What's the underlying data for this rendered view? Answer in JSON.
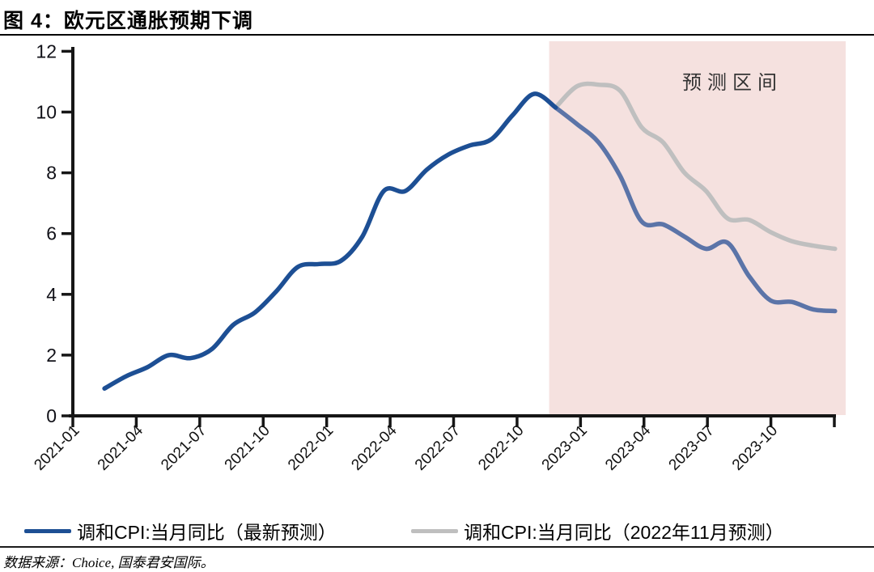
{
  "title": "图 4：欧元区通胀预期下调",
  "source_note": "数据来源：Choice, 国泰君安国际。",
  "colors": {
    "actual_line": "#1d4f94",
    "forecast_line_blue": "#5b74a8",
    "forecast_line_gray": "#bfbfbf",
    "forecast_region_fill": "#f5e1df",
    "axis": "#161616",
    "annotation_text": "#333333"
  },
  "chart_data": {
    "type": "line",
    "title": "欧元区通胀预期下调",
    "xlabel": "",
    "ylabel": "",
    "ylim": [
      0,
      12
    ],
    "y_ticks": [
      0,
      2,
      4,
      6,
      8,
      10,
      12
    ],
    "x_range_start": "2021-01",
    "x_range_end": "2023-12",
    "x_tick_labels": [
      "2021-01",
      "2021-04",
      "2021-07",
      "2021-10",
      "2022-01",
      "2022-04",
      "2022-07",
      "2022-10",
      "2023-01",
      "2023-04",
      "2023-07",
      "2023-10"
    ],
    "annotation": "预测区间",
    "forecast_start": "2022-11",
    "forecast_start_index": 22,
    "grid": false,
    "legend_position": "bottom",
    "series": [
      {
        "name": "调和CPI:当月同比（最新预测）",
        "start": "2021-02",
        "start_index": 1,
        "values": [
          0.9,
          1.3,
          1.6,
          2.0,
          1.9,
          2.2,
          3.0,
          3.4,
          4.1,
          4.9,
          5.0,
          5.1,
          5.9,
          7.4,
          7.4,
          8.1,
          8.6,
          8.9,
          9.1,
          9.9,
          10.6,
          10.15,
          9.6,
          9.0,
          7.9,
          6.4,
          6.3,
          5.9,
          5.5,
          5.7,
          4.6,
          3.8,
          3.75,
          3.5,
          3.45
        ]
      },
      {
        "name": "调和CPI:当月同比（2022年11月预测）",
        "start": "2022-11",
        "start_index": 22,
        "values": [
          10.15,
          10.85,
          10.9,
          10.7,
          9.5,
          9.0,
          8.0,
          7.4,
          6.5,
          6.45,
          6.05,
          5.75,
          5.6,
          5.5
        ]
      }
    ]
  }
}
